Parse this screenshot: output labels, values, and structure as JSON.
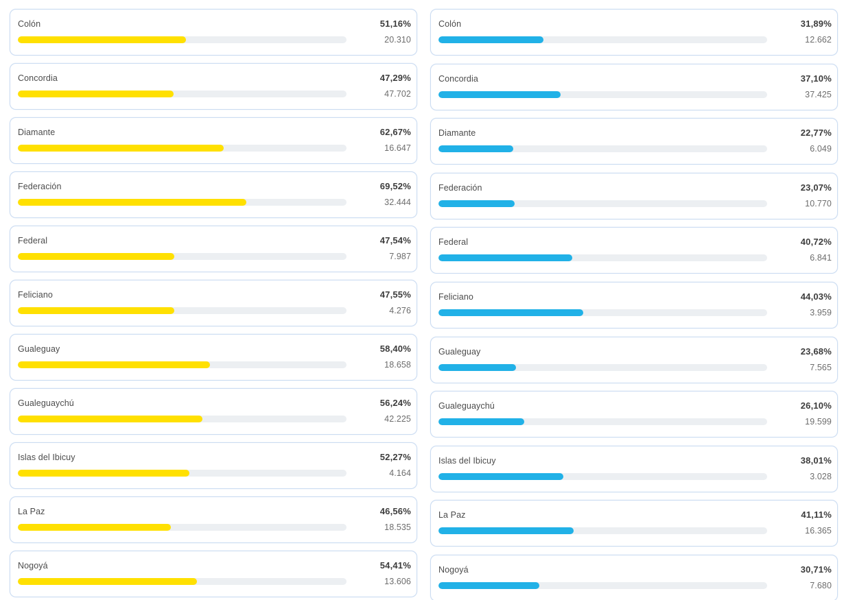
{
  "colors": {
    "left_bar": "#FFE001",
    "right_bar": "#21B1E7",
    "bar_track": "#ECEFF2",
    "card_border": "#CBDCF2",
    "name_text": "#4B4B4B",
    "percent_text": "#3C3C3C",
    "count_text": "#6D6D6D",
    "page_background": "#FFFFFF"
  },
  "columns": [
    {
      "id": "left",
      "bar_color": "#FFE001",
      "items": [
        {
          "name": "Colón",
          "percent": "51,16%",
          "percent_value": 51.16,
          "count": "20.310"
        },
        {
          "name": "Concordia",
          "percent": "47,29%",
          "percent_value": 47.29,
          "count": "47.702"
        },
        {
          "name": "Diamante",
          "percent": "62,67%",
          "percent_value": 62.67,
          "count": "16.647"
        },
        {
          "name": "Federación",
          "percent": "69,52%",
          "percent_value": 69.52,
          "count": "32.444"
        },
        {
          "name": "Federal",
          "percent": "47,54%",
          "percent_value": 47.54,
          "count": "7.987"
        },
        {
          "name": "Feliciano",
          "percent": "47,55%",
          "percent_value": 47.55,
          "count": "4.276"
        },
        {
          "name": "Gualeguay",
          "percent": "58,40%",
          "percent_value": 58.4,
          "count": "18.658"
        },
        {
          "name": "Gualeguaychú",
          "percent": "56,24%",
          "percent_value": 56.24,
          "count": "42.225"
        },
        {
          "name": "Islas del Ibicuy",
          "percent": "52,27%",
          "percent_value": 52.27,
          "count": "4.164"
        },
        {
          "name": "La Paz",
          "percent": "46,56%",
          "percent_value": 46.56,
          "count": "18.535"
        },
        {
          "name": "Nogoyá",
          "percent": "54,41%",
          "percent_value": 54.41,
          "count": "13.606"
        }
      ]
    },
    {
      "id": "right",
      "bar_color": "#21B1E7",
      "items": [
        {
          "name": "Colón",
          "percent": "31,89%",
          "percent_value": 31.89,
          "count": "12.662"
        },
        {
          "name": "Concordia",
          "percent": "37,10%",
          "percent_value": 37.1,
          "count": "37.425"
        },
        {
          "name": "Diamante",
          "percent": "22,77%",
          "percent_value": 22.77,
          "count": "6.049"
        },
        {
          "name": "Federación",
          "percent": "23,07%",
          "percent_value": 23.07,
          "count": "10.770"
        },
        {
          "name": "Federal",
          "percent": "40,72%",
          "percent_value": 40.72,
          "count": "6.841"
        },
        {
          "name": "Feliciano",
          "percent": "44,03%",
          "percent_value": 44.03,
          "count": "3.959"
        },
        {
          "name": "Gualeguay",
          "percent": "23,68%",
          "percent_value": 23.68,
          "count": "7.565"
        },
        {
          "name": "Gualeguaychú",
          "percent": "26,10%",
          "percent_value": 26.1,
          "count": "19.599"
        },
        {
          "name": "Islas del Ibicuy",
          "percent": "38,01%",
          "percent_value": 38.01,
          "count": "3.028"
        },
        {
          "name": "La Paz",
          "percent": "41,11%",
          "percent_value": 41.11,
          "count": "16.365"
        },
        {
          "name": "Nogoyá",
          "percent": "30,71%",
          "percent_value": 30.71,
          "count": "7.680"
        }
      ]
    }
  ],
  "chart_data": {
    "type": "bar",
    "categories": [
      "Colón",
      "Concordia",
      "Diamante",
      "Federación",
      "Federal",
      "Feliciano",
      "Gualeguay",
      "Gualeguaychú",
      "Islas del Ibicuy",
      "La Paz",
      "Nogoyá"
    ],
    "series": [
      {
        "name": "yellow-series",
        "color": "#FFE001",
        "percent": [
          51.16,
          47.29,
          62.67,
          69.52,
          47.54,
          47.55,
          58.4,
          56.24,
          52.27,
          46.56,
          54.41
        ],
        "votes": [
          20310,
          47702,
          16647,
          32444,
          7987,
          4276,
          18658,
          42225,
          4164,
          18535,
          13606
        ]
      },
      {
        "name": "blue-series",
        "color": "#21B1E7",
        "percent": [
          31.89,
          37.1,
          22.77,
          23.07,
          40.72,
          44.03,
          23.68,
          26.1,
          38.01,
          41.11,
          30.71
        ],
        "votes": [
          12662,
          37425,
          6049,
          10770,
          6841,
          3959,
          7565,
          19599,
          3028,
          16365,
          7680
        ]
      }
    ],
    "title": "",
    "xlabel": "",
    "ylabel": "",
    "value_format": "percent (comma decimal) + absolute votes (dot thousands)",
    "bar_scale": [
      0,
      100
    ],
    "legend": "none",
    "grid": false
  }
}
